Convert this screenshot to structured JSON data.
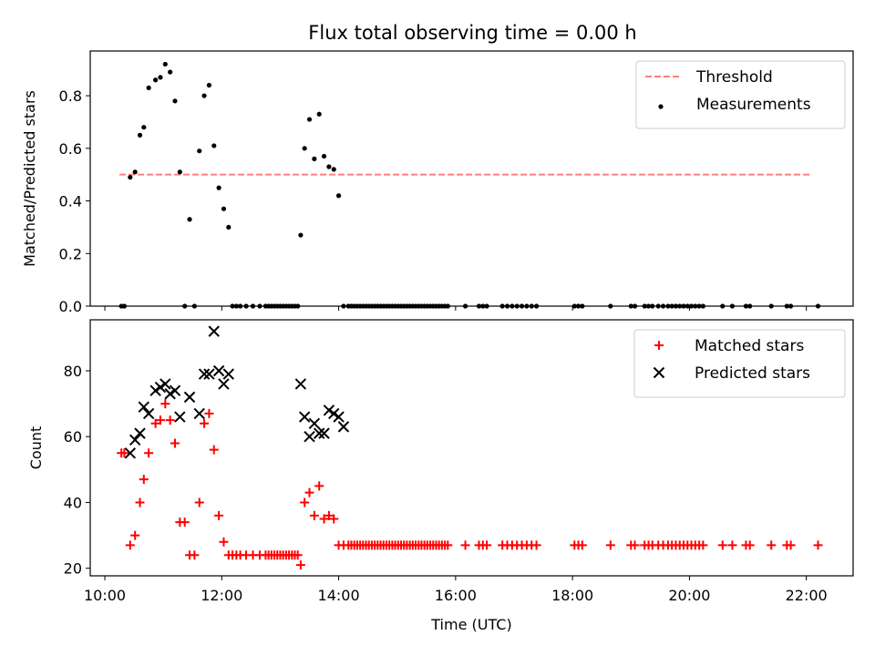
{
  "title": "Flux total observing time = 0.00 h",
  "chart_data": [
    {
      "type": "scatter",
      "ylabel": "Matched/Predicted stars",
      "xlabel": "",
      "ylim": [
        0,
        0.97
      ],
      "xlim_hours": [
        9.75,
        22.8
      ],
      "yticks": [
        "0.0",
        "0.2",
        "0.4",
        "0.6",
        "0.8"
      ],
      "ytick_values": [
        0.0,
        0.2,
        0.4,
        0.6,
        0.8
      ],
      "legend_position": "top-right",
      "threshold": {
        "name": "Threshold",
        "value": 0.5,
        "x_start": "10:15",
        "x_end": "22:05",
        "color": "#ff7f7f",
        "style": "dashed"
      },
      "series": [
        {
          "name": "Measurements",
          "color": "#000000",
          "marker": "dot",
          "x": [
            "10:17",
            "10:20",
            "10:26",
            "10:31",
            "10:36",
            "10:40",
            "10:45",
            "10:52",
            "10:57",
            "11:02",
            "11:07",
            "11:12",
            "11:17",
            "11:22",
            "11:27",
            "11:32",
            "11:37",
            "11:42",
            "11:47",
            "11:52",
            "11:57",
            "12:02",
            "12:07",
            "12:11",
            "12:15",
            "12:19",
            "12:25",
            "12:32",
            "12:39",
            "12:45",
            "12:48",
            "12:51",
            "12:54",
            "12:57",
            "13:00",
            "13:03",
            "13:06",
            "13:09",
            "13:12",
            "13:15",
            "13:18",
            "13:21",
            "13:25",
            "13:30",
            "13:35",
            "13:40",
            "13:45",
            "13:50",
            "13:55",
            "14:00",
            "14:05",
            "14:10",
            "14:13",
            "14:16",
            "14:19",
            "14:22",
            "14:25",
            "14:28",
            "14:31",
            "14:34",
            "14:37",
            "14:40",
            "14:43",
            "14:46",
            "14:49",
            "14:52",
            "14:55",
            "14:58",
            "15:01",
            "15:04",
            "15:07",
            "15:10",
            "15:13",
            "15:16",
            "15:19",
            "15:22",
            "15:25",
            "15:28",
            "15:31",
            "15:34",
            "15:37",
            "15:40",
            "15:43",
            "15:46",
            "15:49",
            "15:52",
            "16:10",
            "16:24",
            "16:28",
            "16:32",
            "16:48",
            "16:53",
            "16:58",
            "17:03",
            "17:08",
            "17:13",
            "17:18",
            "17:23",
            "18:02",
            "18:06",
            "18:10",
            "18:39",
            "19:00",
            "19:04",
            "19:14",
            "19:18",
            "19:22",
            "19:28",
            "19:33",
            "19:38",
            "19:42",
            "19:46",
            "19:50",
            "19:54",
            "19:58",
            "20:02",
            "20:06",
            "20:10",
            "20:14",
            "20:34",
            "20:44",
            "20:58",
            "21:02",
            "21:24",
            "21:40",
            "21:44",
            "22:12"
          ],
          "y": [
            0.0,
            0.0,
            0.49,
            0.51,
            0.65,
            0.68,
            0.83,
            0.86,
            0.87,
            0.92,
            0.89,
            0.78,
            0.51,
            0.0,
            0.33,
            0.0,
            0.59,
            0.8,
            0.84,
            0.61,
            0.45,
            0.37,
            0.3,
            0.0,
            0.0,
            0.0,
            0.0,
            0.0,
            0.0,
            0.0,
            0.0,
            0.0,
            0.0,
            0.0,
            0.0,
            0.0,
            0.0,
            0.0,
            0.0,
            0.0,
            0.0,
            0.27,
            0.6,
            0.71,
            0.56,
            0.73,
            0.57,
            0.53,
            0.52,
            0.42,
            0.0,
            0.0,
            0.0,
            0.0,
            0.0,
            0.0,
            0.0,
            0.0,
            0.0,
            0.0,
            0.0,
            0.0,
            0.0,
            0.0,
            0.0,
            0.0,
            0.0,
            0.0,
            0.0,
            0.0,
            0.0,
            0.0,
            0.0,
            0.0,
            0.0,
            0.0,
            0.0,
            0.0,
            0.0,
            0.0,
            0.0,
            0.0,
            0.0,
            0.0,
            0.0,
            0.0,
            0.0,
            0.0,
            0.0,
            0.0,
            0.0,
            0.0,
            0.0,
            0.0,
            0.0,
            0.0,
            0.0,
            0.0,
            0.0,
            0.0,
            0.0,
            0.0,
            0.0,
            0.0,
            0.0,
            0.0,
            0.0,
            0.0,
            0.0,
            0.0,
            0.0,
            0.0,
            0.0,
            0.0,
            0.0,
            0.0,
            0.0,
            0.0,
            0.0,
            0.0,
            0.0,
            0.0,
            0.0,
            0.0,
            0.0,
            0.0,
            0.0
          ]
        }
      ]
    },
    {
      "type": "scatter",
      "ylabel": "Count",
      "xlabel": "Time (UTC)",
      "ylim": [
        17.7,
        95.5
      ],
      "xlim_hours": [
        9.75,
        22.8
      ],
      "yticks": [
        "20",
        "40",
        "60",
        "80"
      ],
      "ytick_values": [
        20,
        40,
        60,
        80
      ],
      "xticks": [
        "10:00",
        "12:00",
        "14:00",
        "16:00",
        "18:00",
        "20:00",
        "22:00"
      ],
      "xtick_hours": [
        10,
        12,
        14,
        16,
        18,
        20,
        22
      ],
      "legend_position": "top-right",
      "series": [
        {
          "name": "Matched stars",
          "color": "#ff0000",
          "marker": "plus",
          "x": [
            "10:17",
            "10:20",
            "10:26",
            "10:31",
            "10:36",
            "10:40",
            "10:45",
            "10:52",
            "10:57",
            "11:02",
            "11:07",
            "11:12",
            "11:17",
            "11:22",
            "11:27",
            "11:32",
            "11:37",
            "11:42",
            "11:47",
            "11:52",
            "11:57",
            "12:02",
            "12:07",
            "12:11",
            "12:15",
            "12:19",
            "12:25",
            "12:32",
            "12:39",
            "12:45",
            "12:48",
            "12:51",
            "12:54",
            "12:57",
            "13:00",
            "13:03",
            "13:06",
            "13:09",
            "13:12",
            "13:15",
            "13:18",
            "13:21",
            "13:25",
            "13:30",
            "13:35",
            "13:40",
            "13:45",
            "13:50",
            "13:55",
            "14:00",
            "14:05",
            "14:10",
            "14:13",
            "14:16",
            "14:19",
            "14:22",
            "14:25",
            "14:28",
            "14:31",
            "14:34",
            "14:37",
            "14:40",
            "14:43",
            "14:46",
            "14:49",
            "14:52",
            "14:55",
            "14:58",
            "15:01",
            "15:04",
            "15:07",
            "15:10",
            "15:13",
            "15:16",
            "15:19",
            "15:22",
            "15:25",
            "15:28",
            "15:31",
            "15:34",
            "15:37",
            "15:40",
            "15:43",
            "15:46",
            "15:49",
            "15:52",
            "16:10",
            "16:24",
            "16:28",
            "16:32",
            "16:48",
            "16:53",
            "16:58",
            "17:03",
            "17:08",
            "17:13",
            "17:18",
            "17:23",
            "18:02",
            "18:06",
            "18:10",
            "18:39",
            "19:00",
            "19:04",
            "19:14",
            "19:18",
            "19:22",
            "19:28",
            "19:33",
            "19:38",
            "19:42",
            "19:46",
            "19:50",
            "19:54",
            "19:58",
            "20:02",
            "20:06",
            "20:10",
            "20:14",
            "20:34",
            "20:44",
            "20:58",
            "21:02",
            "21:24",
            "21:40",
            "21:44",
            "22:12"
          ],
          "y": [
            55,
            55,
            27,
            30,
            40,
            47,
            55,
            64,
            65,
            70,
            65,
            58,
            34,
            34,
            24,
            24,
            40,
            64,
            67,
            56,
            36,
            28,
            24,
            24,
            24,
            24,
            24,
            24,
            24,
            24,
            24,
            24,
            24,
            24,
            24,
            24,
            24,
            24,
            24,
            24,
            24,
            21,
            40,
            43,
            36,
            45,
            35,
            36,
            35,
            27,
            27,
            27,
            27,
            27,
            27,
            27,
            27,
            27,
            27,
            27,
            27,
            27,
            27,
            27,
            27,
            27,
            27,
            27,
            27,
            27,
            27,
            27,
            27,
            27,
            27,
            27,
            27,
            27,
            27,
            27,
            27,
            27,
            27,
            27,
            27,
            27,
            27,
            27,
            27,
            27,
            27,
            27,
            27,
            27,
            27,
            27,
            27,
            27,
            27,
            27,
            27,
            27,
            27,
            27,
            27,
            27,
            27,
            27,
            27,
            27,
            27,
            27,
            27,
            27,
            27,
            27,
            27,
            27,
            27,
            27,
            27,
            27,
            27,
            27,
            27,
            27,
            27
          ]
        },
        {
          "name": "Predicted stars",
          "color": "#000000",
          "marker": "x",
          "x": [
            "10:26",
            "10:31",
            "10:36",
            "10:40",
            "10:45",
            "10:52",
            "10:57",
            "11:02",
            "11:07",
            "11:12",
            "11:17",
            "11:27",
            "11:37",
            "11:42",
            "11:47",
            "11:52",
            "11:57",
            "12:02",
            "12:07",
            "13:21",
            "13:25",
            "13:30",
            "13:35",
            "13:40",
            "13:45",
            "13:50",
            "13:55",
            "14:00",
            "14:05"
          ],
          "y": [
            55,
            59,
            61,
            69,
            67,
            74,
            75,
            76,
            73,
            74,
            66,
            72,
            67,
            79,
            79,
            92,
            80,
            76,
            79,
            76,
            66,
            60,
            64,
            61,
            61,
            68,
            67,
            66,
            63
          ]
        }
      ]
    }
  ]
}
